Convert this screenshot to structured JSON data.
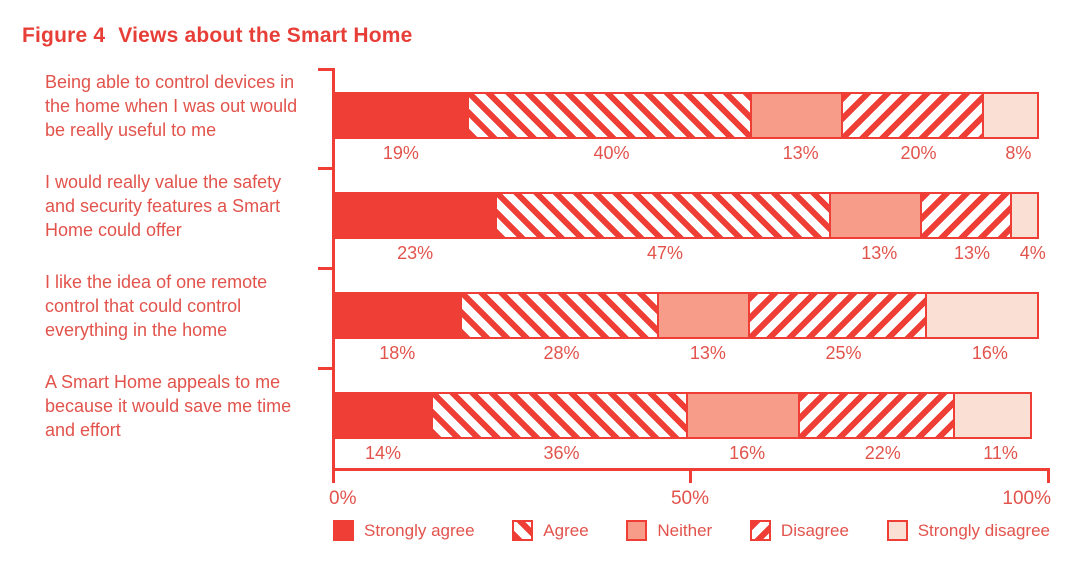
{
  "title": {
    "prefix": "Figure 4",
    "text": "Views about the Smart Home"
  },
  "colors": {
    "accent_red": "#ee3e36",
    "text_red": "#e2534c",
    "title_red": "#e73f38",
    "neither_salmon": "#f69c88",
    "strongly_disagree_pink": "#fadfd4",
    "background": "#ffffff"
  },
  "axis": {
    "tick_labels": [
      "0%",
      "50%",
      "100%"
    ]
  },
  "legend": [
    {
      "label": "Strongly agree",
      "swatch": "solid-red"
    },
    {
      "label": "Agree",
      "swatch": "red-backslash-hatch"
    },
    {
      "label": "Neither",
      "swatch": "solid-salmon"
    },
    {
      "label": "Disagree",
      "swatch": "red-forwardslash-hatch"
    },
    {
      "label": "Strongly disagree",
      "swatch": "solid-light-pink"
    }
  ],
  "chart_data": {
    "type": "bar",
    "orientation": "horizontal",
    "stacked": true,
    "title": "Figure 4  Views about the Smart Home",
    "categories": [
      "Being able to control devices in the home when I was out would be really useful to me",
      "I would really value the safety and security features a Smart Home could offer",
      "I like the idea of one remote control that could control everything in the home",
      "A Smart Home appeals to me because it would save me time and effort"
    ],
    "series": [
      {
        "name": "Strongly agree",
        "values": [
          19,
          23,
          18,
          14
        ]
      },
      {
        "name": "Agree",
        "values": [
          40,
          47,
          28,
          36
        ]
      },
      {
        "name": "Neither",
        "values": [
          13,
          13,
          13,
          16
        ]
      },
      {
        "name": "Disagree",
        "values": [
          20,
          13,
          25,
          22
        ]
      },
      {
        "name": "Strongly disagree",
        "values": [
          8,
          4,
          16,
          11
        ]
      }
    ],
    "value_labels_unit": "%",
    "xlabel": "",
    "ylabel": "",
    "xlim": [
      0,
      100
    ],
    "x_ticks": [
      "0%",
      "50%",
      "100%"
    ],
    "grid": false,
    "legend_position": "bottom"
  }
}
